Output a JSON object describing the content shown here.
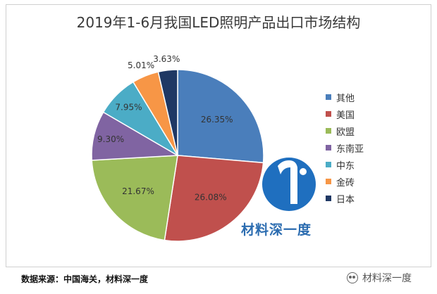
{
  "chart_data": {
    "type": "pie",
    "title": "2019年1-6月我国LED照明产品出口市场结构",
    "categories": [
      "其他",
      "美国",
      "欧盟",
      "东南亚",
      "中东",
      "金砖",
      "日本"
    ],
    "values": [
      26.35,
      26.08,
      21.67,
      9.3,
      7.95,
      5.01,
      3.63
    ],
    "value_labels": [
      "26.35%",
      "26.08%",
      "21.67%",
      "9.30%",
      "7.95%",
      "5.01%",
      "3.63%"
    ],
    "colors": [
      "#4a7ebb",
      "#c0504d",
      "#9bbb59",
      "#8064a2",
      "#4bacc6",
      "#f79646",
      "#1f3864"
    ],
    "start": "12 o'clock",
    "direction": "clockwise",
    "legend_position": "right"
  },
  "brand": {
    "text": "材料深一度",
    "logo_color": "#1f6fbf"
  },
  "source": {
    "text": "数据来源：中国海关，材料深一度"
  },
  "watermark": {
    "text": "材料深一度"
  }
}
